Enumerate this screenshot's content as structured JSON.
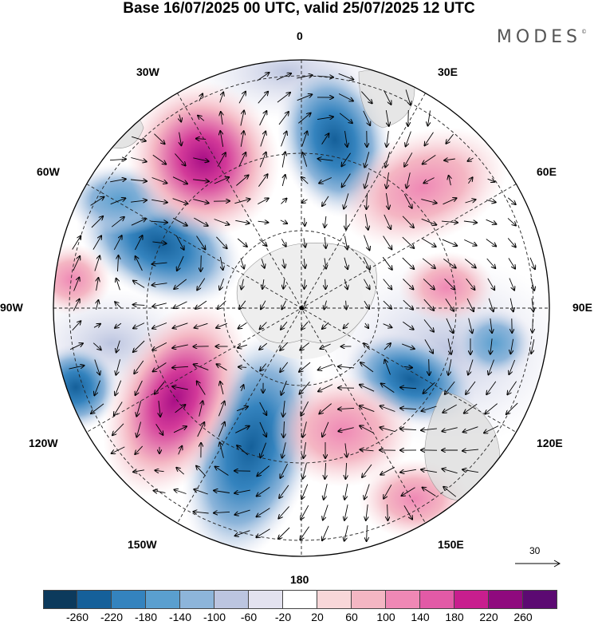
{
  "title": "Base 16/07/2025 00 UTC, valid 25/07/2025 12 UTC",
  "brand": "MODES",
  "brand_mark": "©",
  "longitude_labels": {
    "top": "0",
    "top_right": "30E",
    "right_upper": "60E",
    "right": "90E",
    "right_lower": "120E",
    "bottom_right": "150E",
    "bottom": "180",
    "bottom_left": "150W",
    "left_lower": "120W",
    "left": "90W",
    "left_upper": "60W",
    "top_left": "30W"
  },
  "reference_vector": "30",
  "colorbar": {
    "colors": [
      "#0c3a5c",
      "#15609a",
      "#3483be",
      "#5a9fcf",
      "#8db5da",
      "#bcc5e0",
      "#e3e2ef",
      "#ffffff",
      "#f8d7d9",
      "#f4b6c3",
      "#ef88b5",
      "#e25aa6",
      "#c81e8e",
      "#8f0a7e",
      "#5c0a72"
    ],
    "ticks": [
      "-260",
      "-220",
      "-180",
      "-140",
      "-100",
      "-60",
      "-20",
      "20",
      "60",
      "100",
      "140",
      "180",
      "220",
      "260"
    ]
  }
}
